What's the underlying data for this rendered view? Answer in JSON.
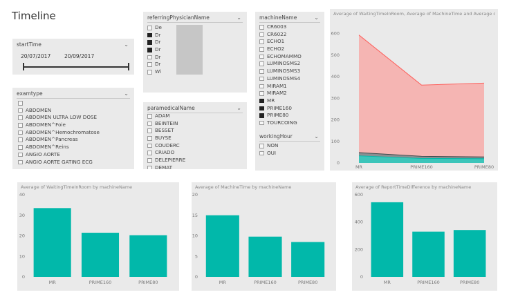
{
  "page": {
    "title": "Timeline"
  },
  "start_time_slicer": {
    "title": "startTime",
    "from_date": "20/07/2017",
    "to_date": "20/09/2017"
  },
  "physician_slicer": {
    "title": "referringPhysicianName",
    "items": [
      {
        "label": "De",
        "checked": false
      },
      {
        "label": "Dr",
        "checked": true
      },
      {
        "label": "Dr",
        "checked": true
      },
      {
        "label": "Dr",
        "checked": true
      },
      {
        "label": "Dr",
        "checked": false
      },
      {
        "label": "Dr",
        "checked": false
      },
      {
        "label": "Wi",
        "checked": false
      }
    ]
  },
  "exam_slicer": {
    "title": "examtype",
    "items": [
      {
        "label": "",
        "checked": false
      },
      {
        "label": "ABDOMEN",
        "checked": false
      },
      {
        "label": "ABDOMEN ULTRA LOW DOSE",
        "checked": false
      },
      {
        "label": "ABDOMEN^Foie",
        "checked": false
      },
      {
        "label": "ABDOMEN^Hemochromatose",
        "checked": false
      },
      {
        "label": "ABDOMEN^Pancreas",
        "checked": false
      },
      {
        "label": "ABDOMEN^Reins",
        "checked": false
      },
      {
        "label": "ANGIO AORTE",
        "checked": false
      },
      {
        "label": "ANGIO AORTE GATING ECG",
        "checked": false
      }
    ]
  },
  "paramedical_slicer": {
    "title": "paramedicalName",
    "items": [
      {
        "label": "ADAM",
        "checked": false
      },
      {
        "label": "BEINTEIN",
        "checked": false
      },
      {
        "label": "BESSET",
        "checked": false
      },
      {
        "label": "BUYSE",
        "checked": false
      },
      {
        "label": "COUDERC",
        "checked": false
      },
      {
        "label": "CRIADO",
        "checked": false
      },
      {
        "label": "DELEPIERRE",
        "checked": false
      },
      {
        "label": "DEMAT",
        "checked": false
      }
    ]
  },
  "machine_slicer": {
    "title": "machineName",
    "items": [
      {
        "label": "CR6003",
        "checked": false
      },
      {
        "label": "CR6022",
        "checked": false
      },
      {
        "label": "ECHO1",
        "checked": false
      },
      {
        "label": "ECHO2",
        "checked": false
      },
      {
        "label": "ECHOMAMMO",
        "checked": false
      },
      {
        "label": "LUMINOSMS2",
        "checked": false
      },
      {
        "label": "LUMINOSMS3",
        "checked": false
      },
      {
        "label": "LUMINOSMS4",
        "checked": false
      },
      {
        "label": "MIRAM1",
        "checked": false
      },
      {
        "label": "MIRAM2",
        "checked": false
      },
      {
        "label": "MR",
        "checked": true
      },
      {
        "label": "PRIME160",
        "checked": true
      },
      {
        "label": "PRIME80",
        "checked": true
      },
      {
        "label": "TOURCOING",
        "checked": false
      }
    ]
  },
  "working_hour_slicer": {
    "title": "workingHour",
    "items": [
      {
        "label": "NON",
        "checked": false
      },
      {
        "label": "OUI",
        "checked": false
      }
    ]
  },
  "colors": {
    "teal": "#01b8aa",
    "black": "#374649",
    "red": "#fd625e",
    "area_red": "#f5b5b3",
    "tile_bg": "#eaeaea"
  },
  "chart_data": [
    {
      "id": "area",
      "type": "area",
      "title": "Average of WaitingTimeInRoom, Average of MachineTime and Average of...",
      "categories": [
        "MR",
        "PRIME160",
        "PRIME80"
      ],
      "series": [
        {
          "name": "Average of WaitingTi...",
          "color": "#01b8aa",
          "values": [
            33,
            21,
            20
          ]
        },
        {
          "name": "Average of MachineTi...",
          "color": "#374649",
          "values": [
            15,
            10,
            8
          ]
        },
        {
          "name": "Average of ReportTim...",
          "color": "#fd625e",
          "values": [
            545,
            330,
            342
          ]
        }
      ],
      "stacked": true,
      "y_ticks": [
        0,
        100,
        200,
        300,
        400,
        500,
        600
      ],
      "ylim": [
        0,
        640
      ],
      "legend": "top-left"
    },
    {
      "id": "bar1",
      "type": "bar",
      "title": "Average of WaitingTimeInRoom by machineName",
      "categories": [
        "MR",
        "PRIME160",
        "PRIME80"
      ],
      "values": [
        33.5,
        21.5,
        20.3
      ],
      "y_ticks": [
        0,
        10,
        20,
        30,
        40
      ],
      "ylim": [
        0,
        40
      ]
    },
    {
      "id": "bar2",
      "type": "bar",
      "title": "Average of MachineTime by machineName",
      "categories": [
        "MR",
        "PRIME160",
        "PRIME80"
      ],
      "values": [
        15,
        9.8,
        8.5
      ],
      "y_ticks": [
        0,
        5,
        10,
        15,
        20
      ],
      "ylim": [
        0,
        20
      ]
    },
    {
      "id": "bar3",
      "type": "bar",
      "title": "Average of ReportTimeDifference by machineName",
      "categories": [
        "MR",
        "PRIME160",
        "PRIME80"
      ],
      "values": [
        545,
        330,
        342
      ],
      "y_ticks": [
        0,
        200,
        400,
        600
      ],
      "ylim": [
        0,
        600
      ]
    }
  ]
}
